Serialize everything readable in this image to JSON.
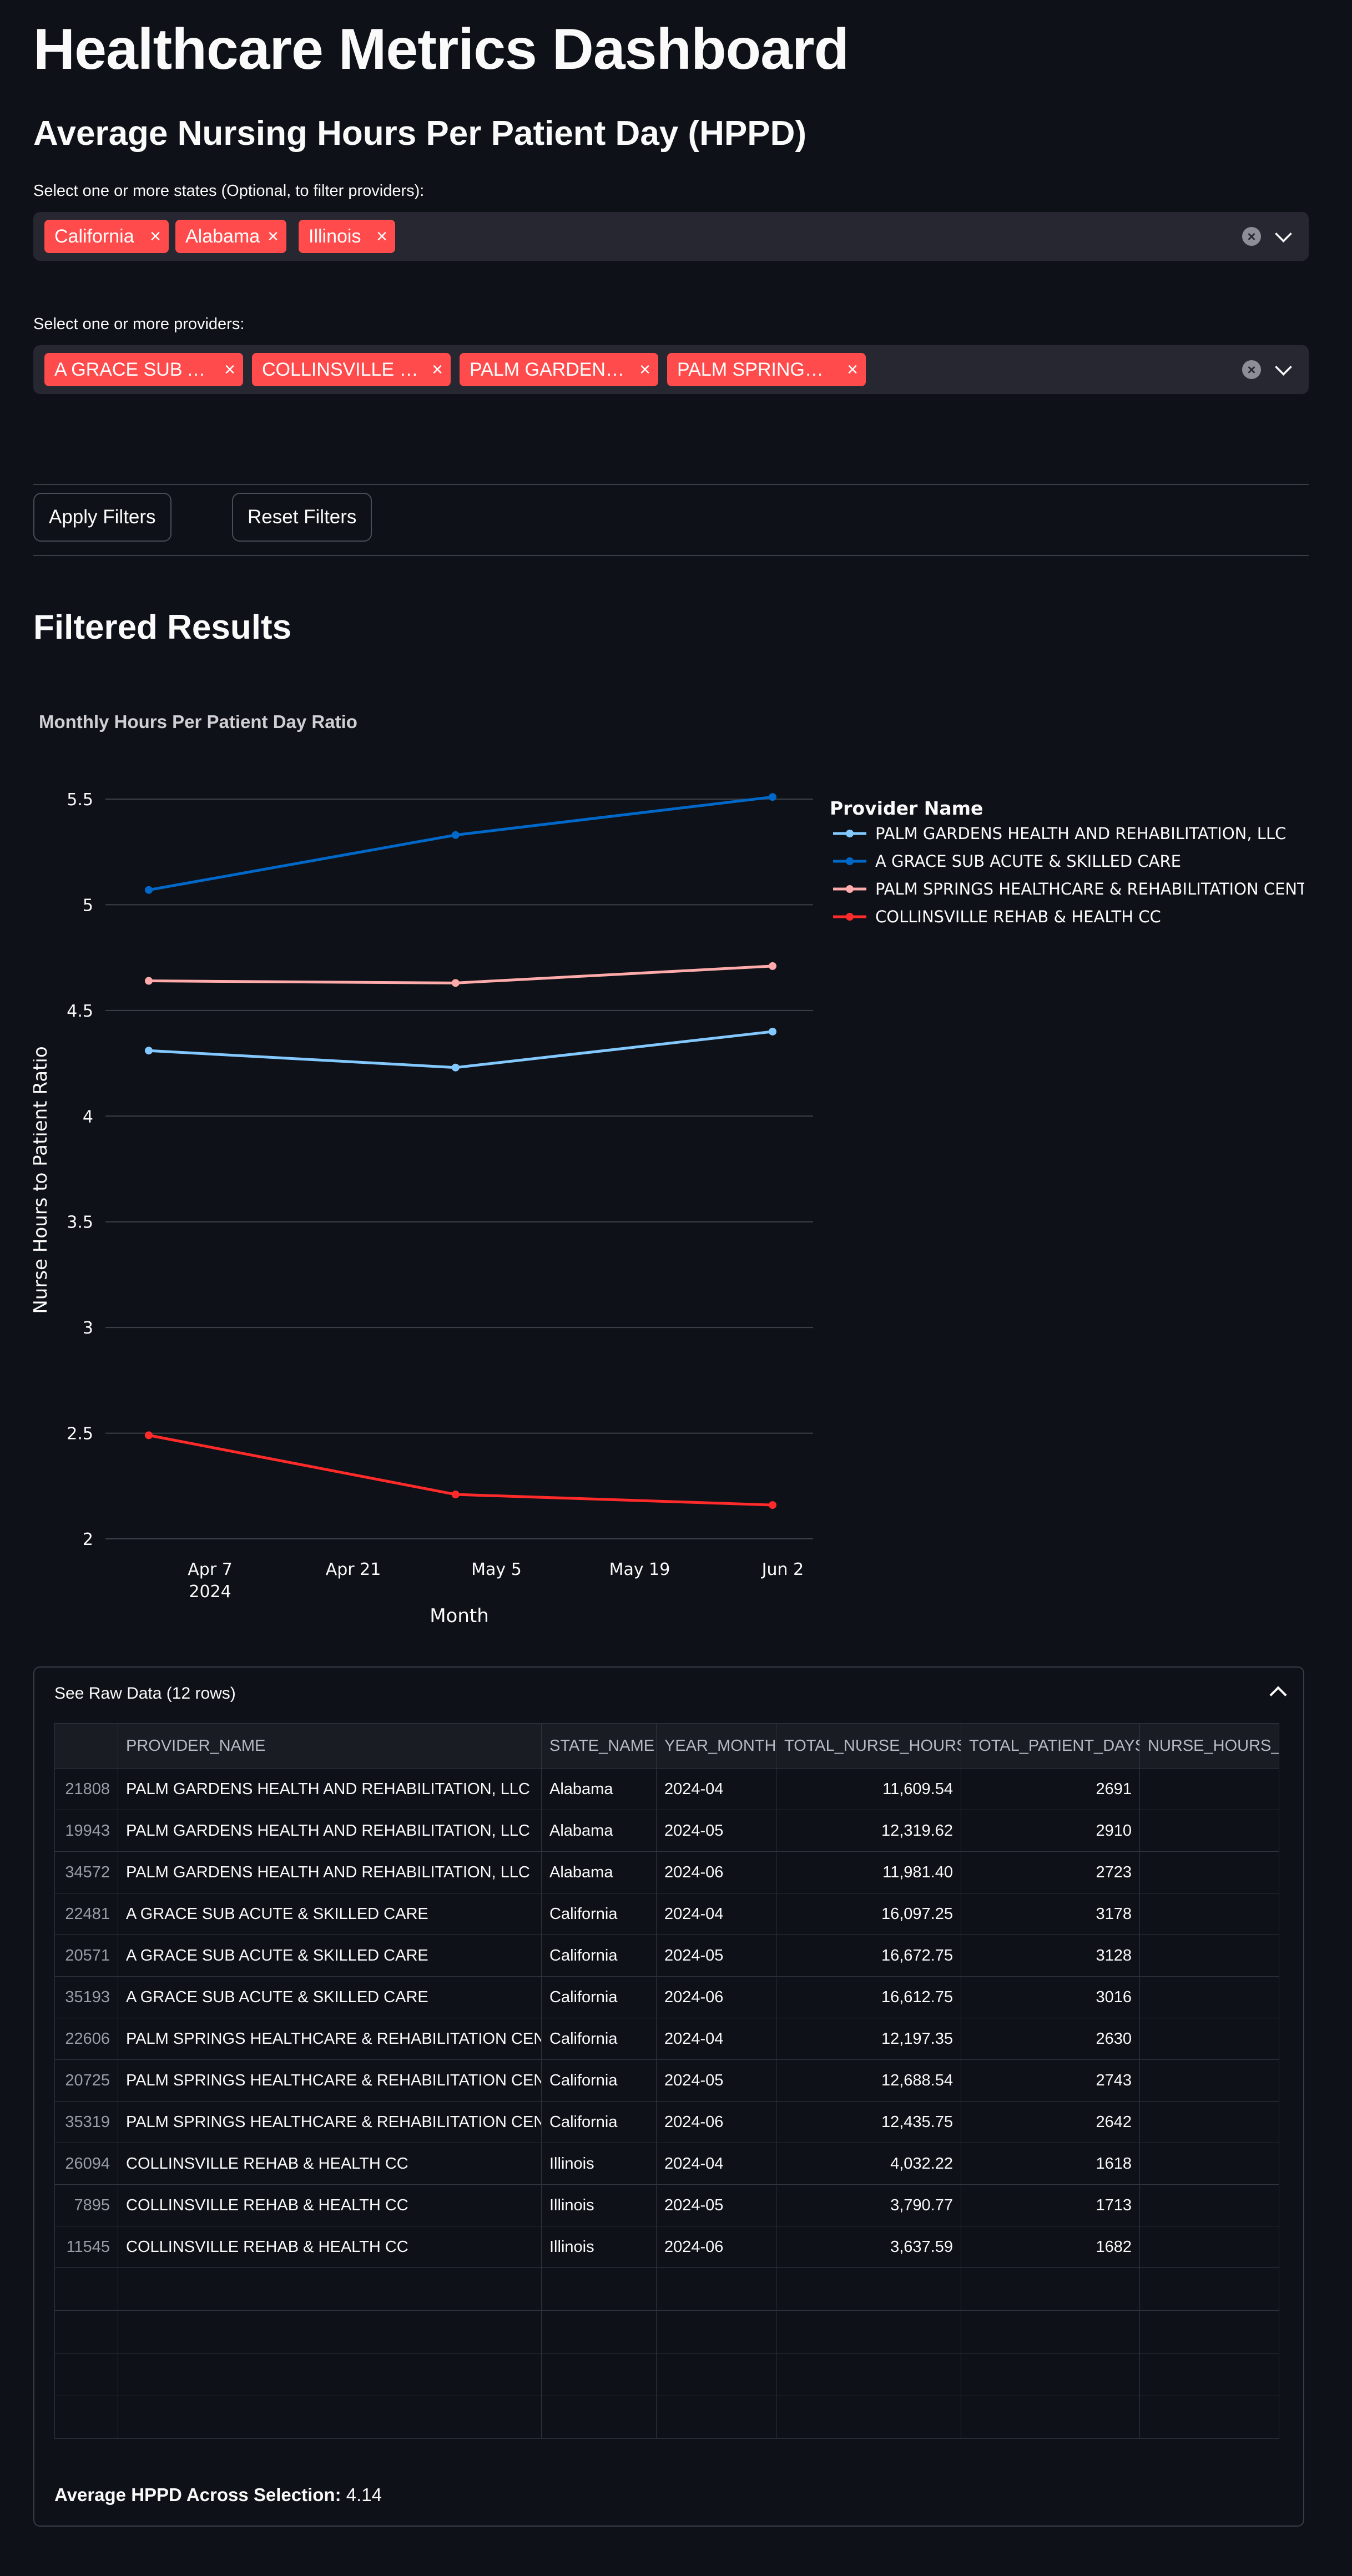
{
  "header": {
    "title": "Healthcare Metrics Dashboard",
    "subtitle": "Average Nursing Hours Per Patient Day (HPPD)"
  },
  "state_filter": {
    "label": "Select one or more states (Optional, to filter providers):",
    "selected": [
      "California",
      "Alabama",
      "Illinois"
    ]
  },
  "provider_filter": {
    "label": "Select one or more providers:",
    "selected": [
      "A GRACE SUB AC…",
      "COLLINSVILLE R…",
      "PALM GARDENS …",
      "PALM SPRINGS …"
    ]
  },
  "chip_remove_glyph": "×",
  "buttons": {
    "apply": "Apply Filters",
    "reset": "Reset Filters"
  },
  "results_heading": "Filtered Results",
  "chart_data": {
    "type": "line",
    "title": "Monthly Hours Per Patient Day Ratio",
    "xlabel": "Month",
    "ylabel": "Nurse Hours to Patient Ratio",
    "x": [
      "2024-04-01",
      "2024-05-01",
      "2024-06-01"
    ],
    "x_ticks": [
      "Apr 7",
      "Apr 21",
      "May 5",
      "May 19",
      "Jun 2"
    ],
    "x_tick_year": "2024",
    "ylim": [
      2,
      5.5
    ],
    "y_ticks": [
      "2",
      "2.5",
      "3",
      "3.5",
      "4",
      "4.5",
      "5",
      "5.5"
    ],
    "grid": true,
    "legend_title": "Provider Name",
    "legend_position": "right",
    "series": [
      {
        "name": "PALM GARDENS HEALTH AND REHABILITATION, LLC",
        "color": "#83c9ff",
        "values": [
          4.31,
          4.23,
          4.4
        ]
      },
      {
        "name": "A GRACE SUB ACUTE & SKILLED CARE",
        "color": "#0068c9",
        "values": [
          5.07,
          5.33,
          5.51
        ]
      },
      {
        "name": "PALM SPRINGS HEALTHCARE & REHABILITATION CENTER",
        "color": "#ffabab",
        "values": [
          4.64,
          4.63,
          4.71
        ]
      },
      {
        "name": "COLLINSVILLE REHAB & HEALTH CC",
        "color": "#ff2b2b",
        "values": [
          2.49,
          2.21,
          2.16
        ]
      }
    ]
  },
  "raw_data": {
    "title": "See Raw Data (12 rows)",
    "columns": [
      "",
      "PROVIDER_NAME",
      "STATE_NAME",
      "YEAR_MONTH",
      "TOTAL_NURSE_HOURS",
      "TOTAL_PATIENT_DAYS",
      "NURSE_HOURS_TO"
    ],
    "rows": [
      [
        "21808",
        "PALM GARDENS HEALTH AND REHABILITATION, LLC",
        "Alabama",
        "2024-04",
        "11,609.54",
        "2691",
        ""
      ],
      [
        "19943",
        "PALM GARDENS HEALTH AND REHABILITATION, LLC",
        "Alabama",
        "2024-05",
        "12,319.62",
        "2910",
        ""
      ],
      [
        "34572",
        "PALM GARDENS HEALTH AND REHABILITATION, LLC",
        "Alabama",
        "2024-06",
        "11,981.40",
        "2723",
        ""
      ],
      [
        "22481",
        "A GRACE SUB ACUTE & SKILLED CARE",
        "California",
        "2024-04",
        "16,097.25",
        "3178",
        ""
      ],
      [
        "20571",
        "A GRACE SUB ACUTE & SKILLED CARE",
        "California",
        "2024-05",
        "16,672.75",
        "3128",
        ""
      ],
      [
        "35193",
        "A GRACE SUB ACUTE & SKILLED CARE",
        "California",
        "2024-06",
        "16,612.75",
        "3016",
        ""
      ],
      [
        "22606",
        "PALM SPRINGS HEALTHCARE & REHABILITATION CENTER",
        "California",
        "2024-04",
        "12,197.35",
        "2630",
        ""
      ],
      [
        "20725",
        "PALM SPRINGS HEALTHCARE & REHABILITATION CENTER",
        "California",
        "2024-05",
        "12,688.54",
        "2743",
        ""
      ],
      [
        "35319",
        "PALM SPRINGS HEALTHCARE & REHABILITATION CENTER",
        "California",
        "2024-06",
        "12,435.75",
        "2642",
        ""
      ],
      [
        "26094",
        "COLLINSVILLE REHAB & HEALTH CC",
        "Illinois",
        "2024-04",
        "4,032.22",
        "1618",
        ""
      ],
      [
        "7895",
        "COLLINSVILLE REHAB & HEALTH CC",
        "Illinois",
        "2024-05",
        "3,790.77",
        "1713",
        ""
      ],
      [
        "11545",
        "COLLINSVILLE REHAB & HEALTH CC",
        "Illinois",
        "2024-06",
        "3,637.59",
        "1682",
        ""
      ]
    ],
    "empty_rows": 4
  },
  "summary": {
    "label": "Average HPPD Across Selection:",
    "value": "4.14"
  }
}
